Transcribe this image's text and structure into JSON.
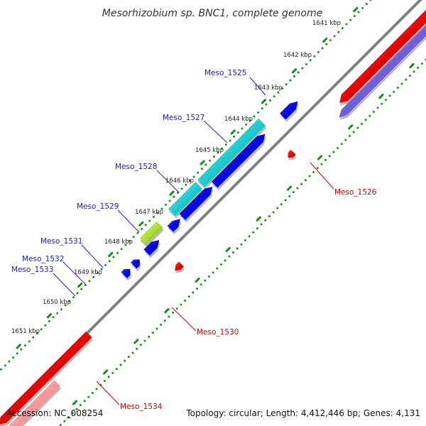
{
  "title": "Mesorhizobium sp. BNC1, complete genome",
  "footer": {
    "accession": "Accession: NC_008254",
    "summary": "Topology: circular; Length: 4,412,446 bp; Genes: 4,131"
  },
  "colors": {
    "backbone": "#808080",
    "tick_dots": "#1e8a1e",
    "forward_cds": "#0a0ae6",
    "reverse_cds": "#e60a0a",
    "rna": "#19c8c8",
    "other": "#9acd32",
    "reverse_faded": "#f08080",
    "label_forward": "#1a1acc",
    "label_reverse": "#cc0000"
  },
  "kbp_labels": [
    "1641 kbp",
    "1642 kbp",
    "1643 kbp",
    "1644 kbp",
    "1645 kbp",
    "1646 kbp",
    "1647 kbp",
    "1648 kbp",
    "1649 kbp",
    "1650 kbp",
    "1651 kbp"
  ],
  "gene_labels_forward": [
    "Meso_1525",
    "Meso_1527",
    "Meso_1528",
    "Meso_1529",
    "Meso_1531",
    "Meso_1532",
    "Meso_1533"
  ],
  "gene_labels_reverse": [
    "Meso_1526",
    "Meso_1530",
    "Meso_1534"
  ]
}
